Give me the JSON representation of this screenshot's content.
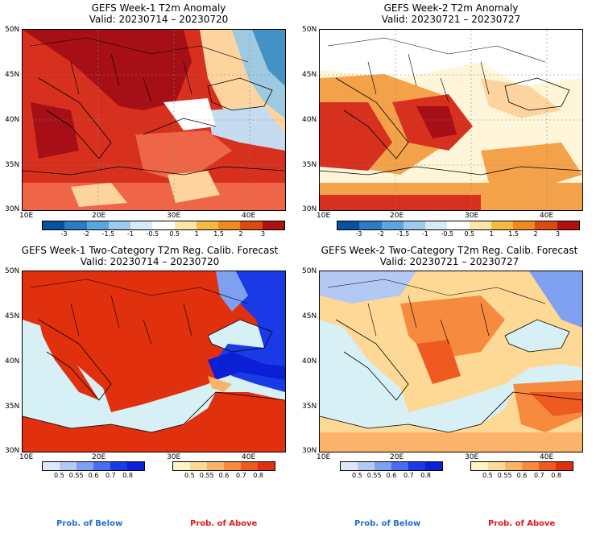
{
  "colors": {
    "dark_red": "#a50f15",
    "red": "#d7301f",
    "orange_red": "#ef6548",
    "orange": "#f4a24a",
    "light_orange": "#fdd49e",
    "pale": "#fff5d8",
    "white": "#ffffff",
    "pale_blue": "#c6dbef",
    "light_blue": "#9ecae1",
    "blue": "#4292c6",
    "dark_blue": "#08519c",
    "sea": "#d6f0f5",
    "prob_below": "#1f6fd0",
    "prob_above": "#e41a1c"
  },
  "panels": [
    {
      "title": "GEFS Week-1 T2m Anomaly",
      "valid": "Valid: 20230714 – 20230720",
      "lat_labels": [
        "50N",
        "45N",
        "40N",
        "35N",
        "30N"
      ],
      "lon_labels": [
        "10E",
        "20E",
        "30E",
        "40E"
      ]
    },
    {
      "title": "GEFS Week-2 T2m Anomaly",
      "valid": "Valid: 20230721 – 20230727",
      "lat_labels": [
        "50N",
        "45N",
        "40N",
        "35N",
        "30N"
      ],
      "lon_labels": [
        "10E",
        "20E",
        "30E",
        "40E"
      ]
    },
    {
      "title": "GEFS Week-1 Two-Category T2m Reg. Calib. Forecast",
      "valid": "Valid: 20230714 – 20230720",
      "lat_labels": [
        "50N",
        "45N",
        "40N",
        "35N",
        "30N"
      ],
      "lon_labels": [
        "10E",
        "20E",
        "30E",
        "40E"
      ]
    },
    {
      "title": "GEFS Week-2 Two-Category T2m Reg. Calib. Forecast",
      "valid": "Valid: 20230721 – 20230727",
      "lat_labels": [
        "50N",
        "45N",
        "40N",
        "35N",
        "30N"
      ],
      "lon_labels": [
        "10E",
        "20E",
        "30E",
        "40E"
      ]
    }
  ],
  "anomaly_colorbar": {
    "ticks": [
      "-3",
      "-2",
      "-1.5",
      "-1",
      "-0.5",
      "0.5",
      "1",
      "1.5",
      "2",
      "3"
    ],
    "colors": [
      "#0a50a0",
      "#2c7bc6",
      "#5aa6e0",
      "#9ccbee",
      "#d6eaf8",
      "#ffffff",
      "#fde7a6",
      "#f7b945",
      "#f08a1c",
      "#dc4a12",
      "#b01010"
    ]
  },
  "prob_below_colorbar": {
    "ticks": [
      "0.5",
      "0.55",
      "0.6",
      "0.7",
      "0.8"
    ],
    "colors": [
      "#dfe8f7",
      "#b3c8f2",
      "#7f9ff0",
      "#4a6cf0",
      "#1a3ae8",
      "#0a1fd6"
    ]
  },
  "prob_above_colorbar": {
    "ticks": [
      "0.5",
      "0.55",
      "0.6",
      "0.7",
      "0.8"
    ],
    "colors": [
      "#fff4c8",
      "#fdd995",
      "#fbb36a",
      "#f68a3e",
      "#ee5a22",
      "#e0300e"
    ]
  },
  "footer": {
    "left_below": "Prob. of Below",
    "left_above": "Prob. of Above",
    "right_below": "Prob. of Below",
    "right_above": "Prob. of Above"
  }
}
